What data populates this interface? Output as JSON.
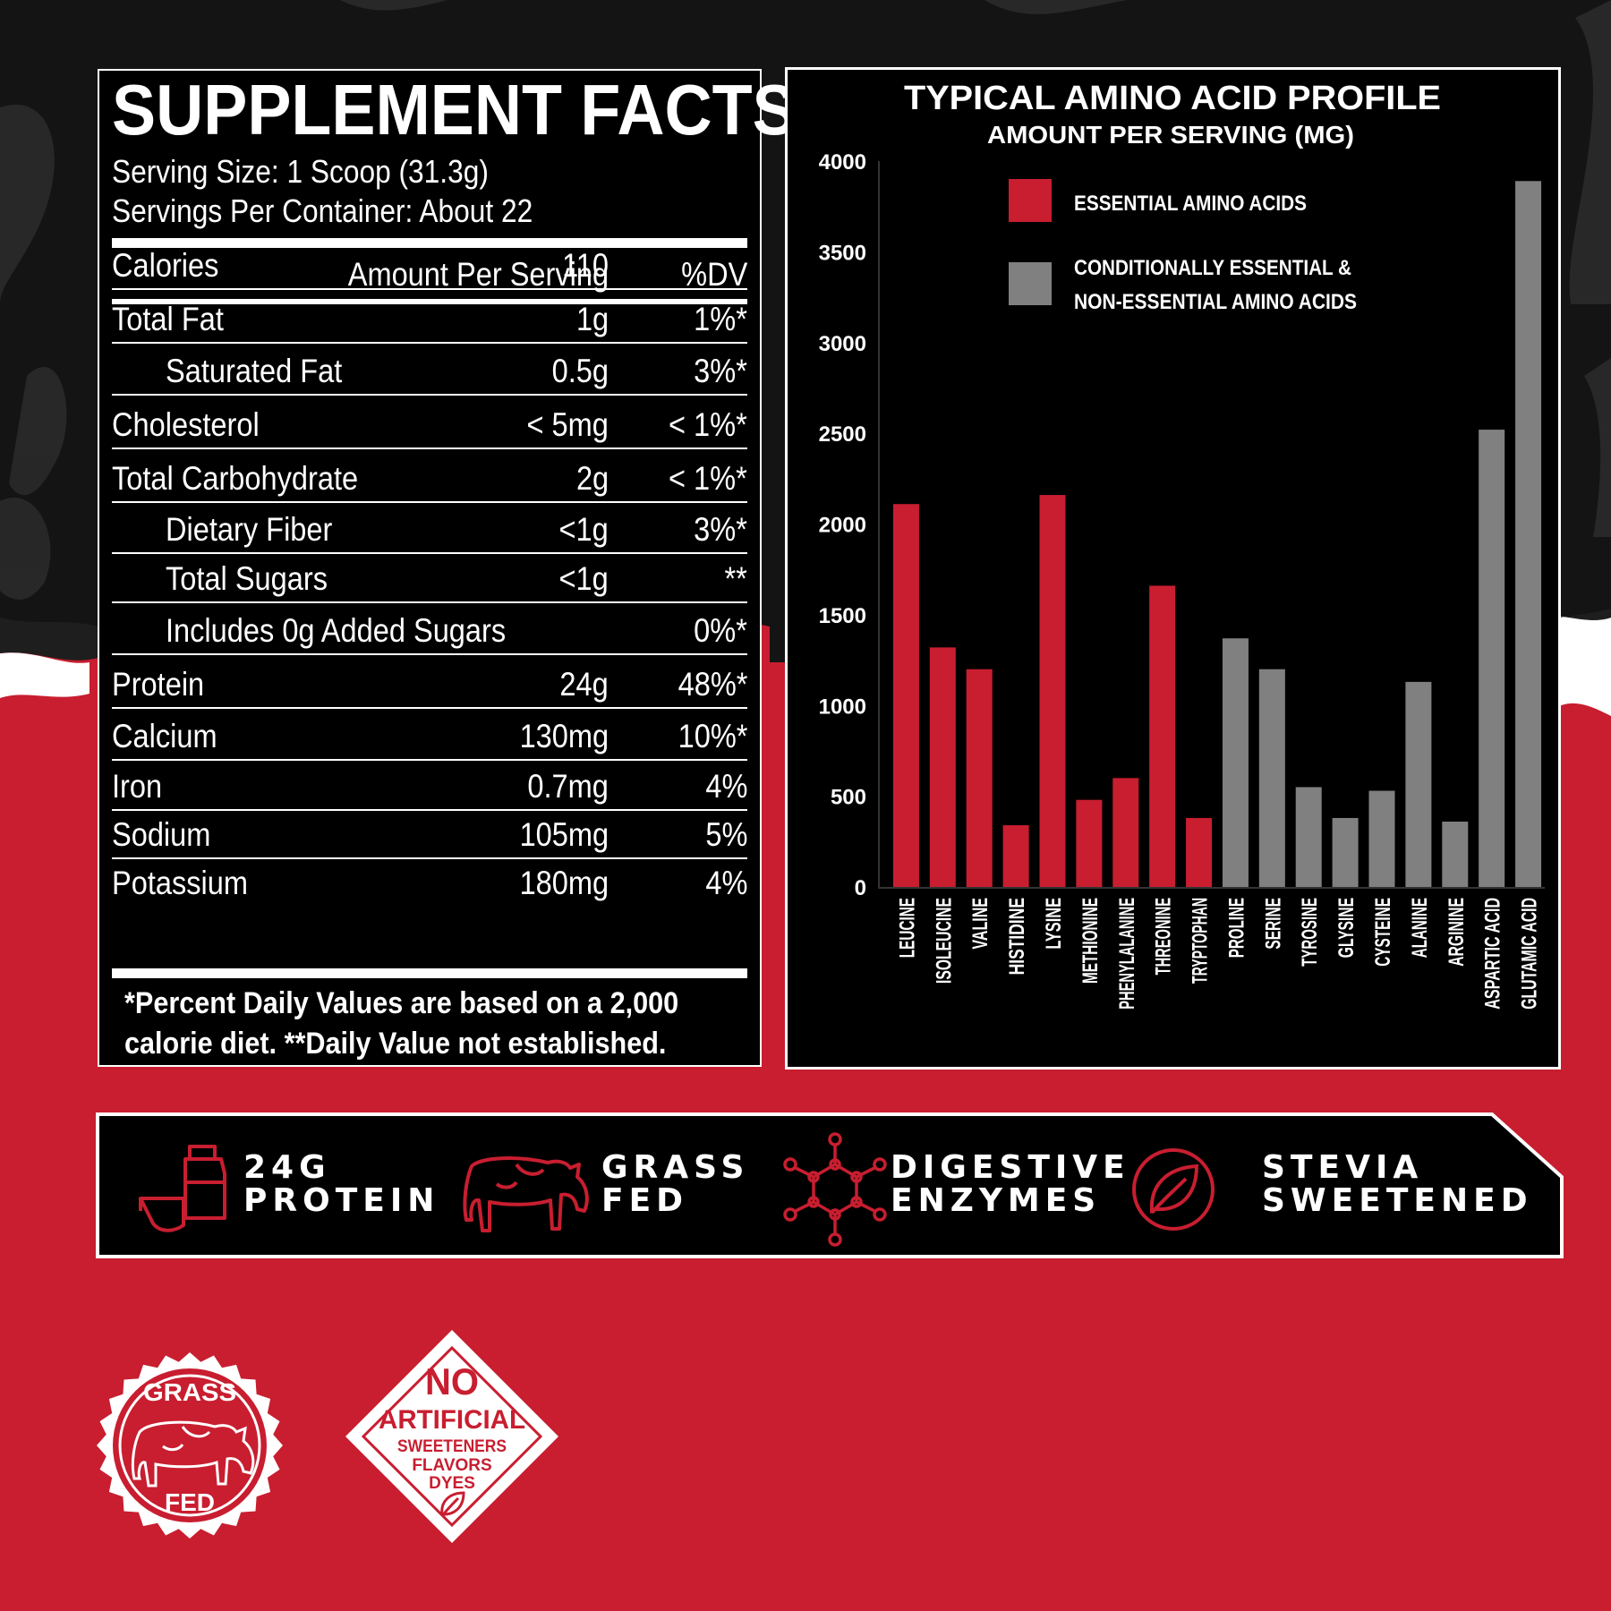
{
  "facts": {
    "title": "SUPPLEMENT FACTS",
    "serving_size": "Serving Size: 1 Scoop (31.3g)",
    "servings_per_container": "Servings Per Container: About 22",
    "header_amount": "Amount Per Serving",
    "header_dv": "%DV",
    "rows": [
      {
        "name": "Calories",
        "amount": "110",
        "dv": "",
        "indent": false
      },
      {
        "name": "Total Fat",
        "amount": "1g",
        "dv": "1%*",
        "indent": false
      },
      {
        "name": "Saturated Fat",
        "amount": "0.5g",
        "dv": "3%*",
        "indent": true
      },
      {
        "name": "Cholesterol",
        "amount": "< 5mg",
        "dv": "< 1%*",
        "indent": false
      },
      {
        "name": "Total Carbohydrate",
        "amount": "2g",
        "dv": "< 1%*",
        "indent": false
      },
      {
        "name": "Dietary Fiber",
        "amount": "<1g",
        "dv": "3%*",
        "indent": true
      },
      {
        "name": "Total Sugars",
        "amount": "<1g",
        "dv": "**",
        "indent": true
      },
      {
        "name": "Includes 0g Added Sugars",
        "amount": "",
        "dv": "0%*",
        "indent": true
      },
      {
        "name": "Protein",
        "amount": "24g",
        "dv": "48%*",
        "indent": false
      },
      {
        "name": "Calcium",
        "amount": "130mg",
        "dv": "10%*",
        "indent": false
      },
      {
        "name": "Iron",
        "amount": "0.7mg",
        "dv": "4%",
        "indent": false
      },
      {
        "name": "Sodium",
        "amount": "105mg",
        "dv": "5%",
        "indent": false
      },
      {
        "name": "Potassium",
        "amount": "180mg",
        "dv": "4%",
        "indent": false
      }
    ],
    "footnote_1": "*Percent Daily Values are based on a 2,000",
    "footnote_2": "calorie diet.  **Daily Value not established."
  },
  "chart_data": {
    "type": "bar",
    "title": "TYPICAL AMINO ACID PROFILE",
    "subtitle": "AMOUNT PER SERVING (MG)",
    "ylim": [
      0,
      4000
    ],
    "yticks": [
      0,
      500,
      1000,
      1500,
      2000,
      2500,
      3000,
      3500,
      4000
    ],
    "grid": false,
    "legend_position": "top-left",
    "categories": [
      "LEUCINE",
      "ISOLEUCINE",
      "VALINE",
      "HISTIDINE",
      "LYSINE",
      "METHIONINE",
      "PHENYLALANINE",
      "THREONINE",
      "TRYPTOPHAN",
      "PROLINE",
      "SERINE",
      "TYROSINE",
      "GLYSINE",
      "CYSTEINE",
      "ALANINE",
      "ARGININE",
      "ASPARTIC ACID",
      "GLUTAMIC ACID"
    ],
    "values": [
      2110,
      1320,
      1200,
      340,
      2160,
      480,
      600,
      1660,
      380,
      1370,
      1200,
      550,
      380,
      530,
      1130,
      360,
      2520,
      3890
    ],
    "groups": [
      "essential",
      "essential",
      "essential",
      "essential",
      "essential",
      "essential",
      "essential",
      "essential",
      "essential",
      "nonessential",
      "nonessential",
      "nonessential",
      "nonessential",
      "nonessential",
      "nonessential",
      "nonessential",
      "nonessential",
      "nonessential"
    ],
    "series": [
      {
        "name": "ESSENTIAL AMINO ACIDS",
        "key": "essential",
        "color": "#c81e30"
      },
      {
        "name": "CONDITIONALLY ESSENTIAL & NON-ESSENTIAL AMINO ACIDS",
        "key": "nonessential",
        "color": "#808080"
      }
    ],
    "legend_label_1": "ESSENTIAL AMINO ACIDS",
    "legend_label_2a": "CONDITIONALLY ESSENTIAL &",
    "legend_label_2b": "NON-ESSENTIAL AMINO ACIDS"
  },
  "features": [
    {
      "line1": "24G",
      "line2": "PROTEIN",
      "icon": "shaker-scoop-icon"
    },
    {
      "line1": "GRASS",
      "line2": "FED",
      "icon": "cow-icon"
    },
    {
      "line1": "DIGESTIVE",
      "line2": "ENZYMES",
      "icon": "molecule-icon"
    },
    {
      "line1": "STEVIA",
      "line2": "SWEETENED",
      "icon": "leaf-icon"
    }
  ],
  "badges": {
    "grass_fed_top": "GRASS",
    "grass_fed_bottom": "FED",
    "no_art_1": "NO",
    "no_art_2": "ARTIFICIAL",
    "no_art_3": "SWEETENERS",
    "no_art_4": "FLAVORS",
    "no_art_5": "DYES"
  },
  "colors": {
    "brand_red": "#c81e30",
    "gray_bar": "#808080",
    "black": "#000000",
    "white": "#ffffff"
  }
}
